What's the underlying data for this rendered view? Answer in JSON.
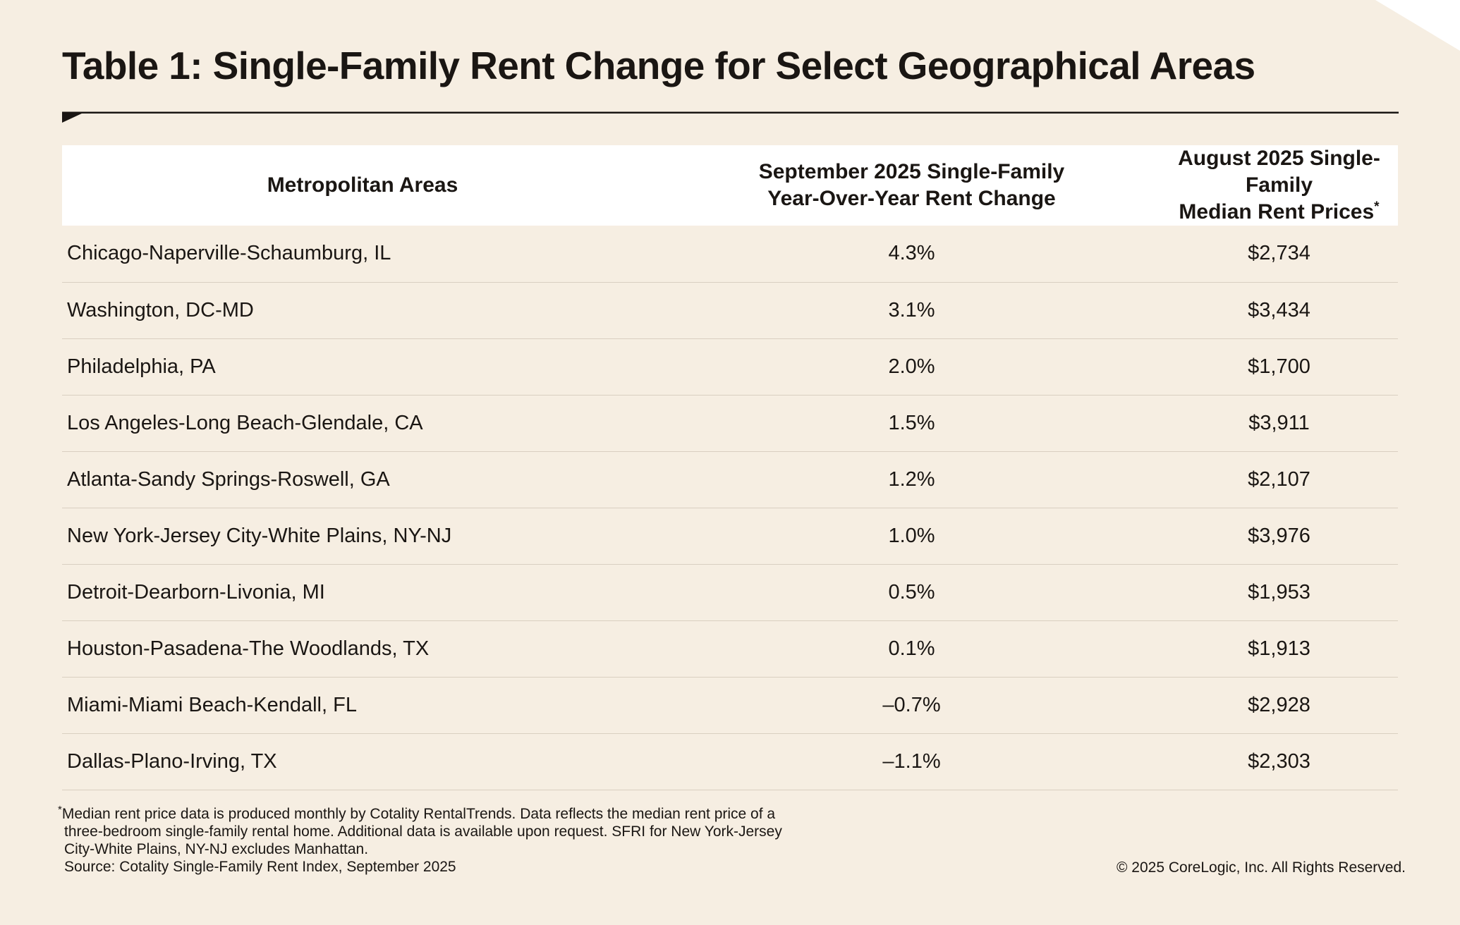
{
  "chart_data": {
    "type": "table",
    "title": "Table 1: Single-Family Rent Change for Select Geographical Areas",
    "columns": [
      {
        "lines": [
          "Metropolitan Areas"
        ]
      },
      {
        "lines": [
          "September 2025 Single-Family",
          "Year-Over-Year Rent Change"
        ]
      },
      {
        "lines": [
          "August 2025 Single-Family",
          "Median Rent Prices"
        ],
        "marker": "*"
      }
    ],
    "rows": [
      {
        "area": "Chicago-Naperville-Schaumburg, IL",
        "yoy": "4.3%",
        "median": "$2,734"
      },
      {
        "area": "Washington, DC-MD",
        "yoy": "3.1%",
        "median": "$3,434"
      },
      {
        "area": "Philadelphia, PA",
        "yoy": "2.0%",
        "median": "$1,700"
      },
      {
        "area": "Los Angeles-Long Beach-Glendale, CA",
        "yoy": "1.5%",
        "median": "$3,911"
      },
      {
        "area": "Atlanta-Sandy Springs-Roswell, GA",
        "yoy": "1.2%",
        "median": "$2,107"
      },
      {
        "area": "New York-Jersey City-White Plains, NY-NJ",
        "yoy": "1.0%",
        "median": "$3,976"
      },
      {
        "area": "Detroit-Dearborn-Livonia, MI",
        "yoy": "0.5%",
        "median": "$1,953"
      },
      {
        "area": "Houston-Pasadena-The Woodlands, TX",
        "yoy": "0.1%",
        "median": "$1,913"
      },
      {
        "area": "Miami-Miami Beach-Kendall, FL",
        "yoy": "–0.7%",
        "median": "$2,928"
      },
      {
        "area": "Dallas-Plano-Irving, TX",
        "yoy": "–1.1%",
        "median": "$2,303"
      }
    ]
  },
  "footnote": {
    "marker": "*",
    "lines": [
      "Median rent price data is produced monthly by Cotality RentalTrends. Data reflects the median rent price of a",
      "three-bedroom single-family rental home. Additional data is available upon request. SFRI for New York-Jersey",
      "City-White Plains, NY-NJ excludes Manhattan."
    ],
    "source": "Source: Cotality Single-Family Rent Index, September 2025"
  },
  "copyright": "© 2025 CoreLogic, Inc. All Rights Reserved.",
  "colors": {
    "background": "#f6eee2",
    "header_background": "#ffffff",
    "text": "#1a1613",
    "row_divider": "#d9cfc1",
    "corner_shape": "#ffffff"
  }
}
